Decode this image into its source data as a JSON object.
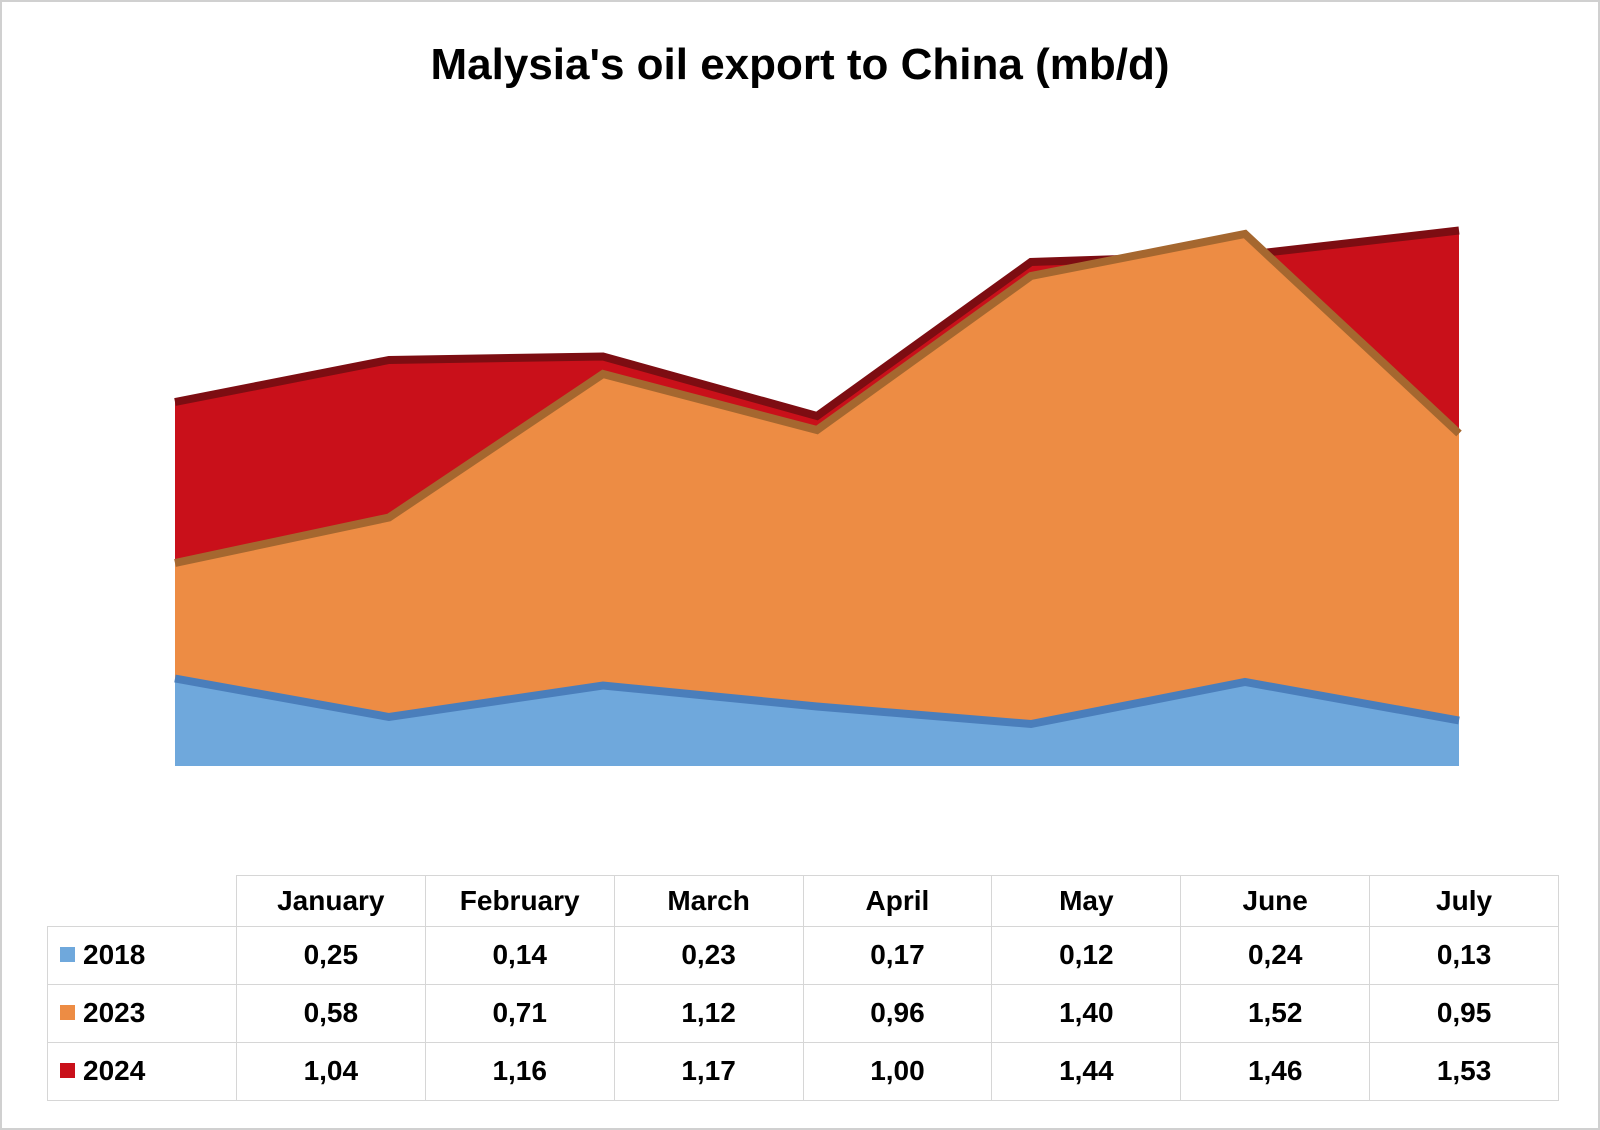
{
  "page": {
    "title": "Malysia's oil export to China (mb/d)"
  },
  "chart_data": {
    "type": "area",
    "overlapping": true,
    "title": "Malysia's oil export to China (mb/d)",
    "categories": [
      "January",
      "February",
      "March",
      "April",
      "May",
      "June",
      "July"
    ],
    "series": [
      {
        "name": "2018",
        "color": "#6fa8dc",
        "edge_color": "#4a7ebb",
        "values": [
          0.25,
          0.14,
          0.23,
          0.17,
          0.12,
          0.24,
          0.13
        ],
        "display": [
          "0,25",
          "0,14",
          "0,23",
          "0,17",
          "0,12",
          "0,24",
          "0,13"
        ]
      },
      {
        "name": "2023",
        "color": "#ed8c44",
        "edge_color": "#a5672f",
        "values": [
          0.58,
          0.71,
          1.12,
          0.96,
          1.4,
          1.52,
          0.95
        ],
        "display": [
          "0,58",
          "0,71",
          "1,12",
          "0,96",
          "1,40",
          "1,52",
          "0,95"
        ]
      },
      {
        "name": "2024",
        "color": "#c9101a",
        "edge_color": "#7d0d12",
        "values": [
          1.04,
          1.16,
          1.17,
          1.0,
          1.44,
          1.46,
          1.53
        ],
        "display": [
          "1,04",
          "1,16",
          "1,17",
          "1,00",
          "1,44",
          "1,46",
          "1,53"
        ]
      }
    ],
    "ylim": [
      0,
      1.6
    ],
    "grid": false,
    "legend_position": "table-left",
    "value_axis_visible": false,
    "category_axis_visible": false
  }
}
